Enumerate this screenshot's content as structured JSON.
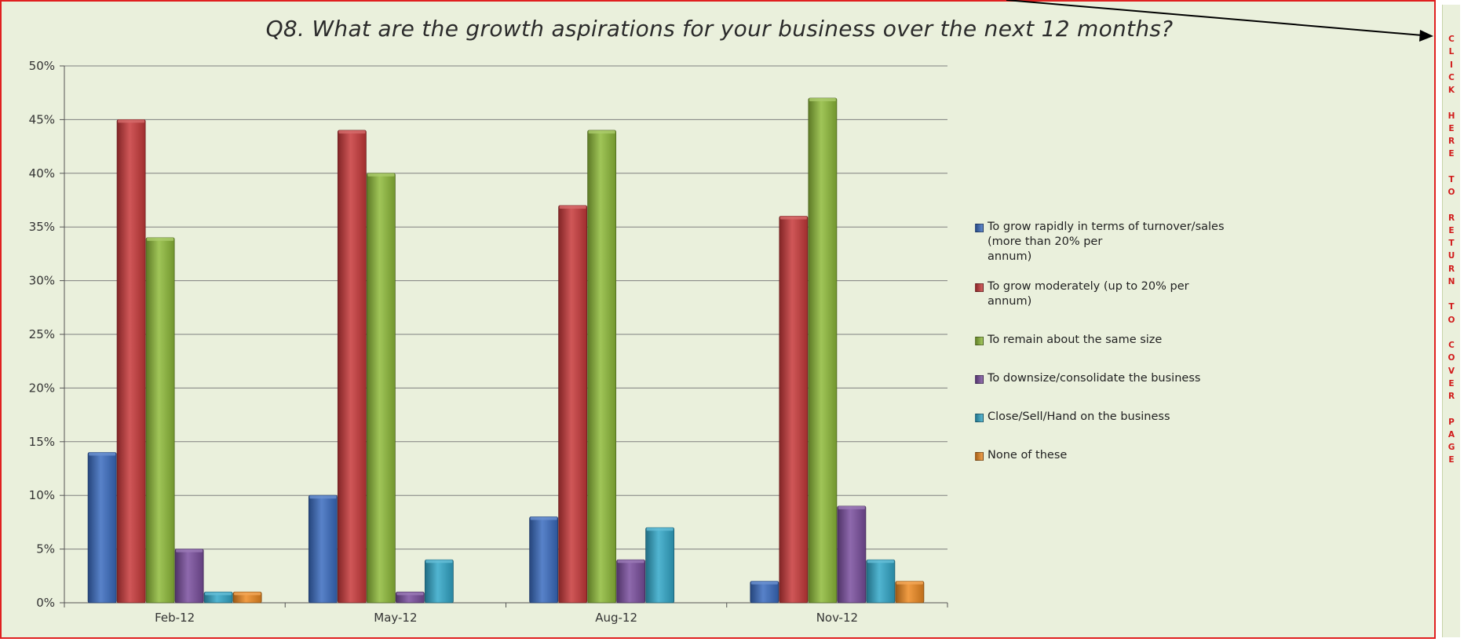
{
  "title": "Q8. What are the growth aspirations for your business over the next 12 months?",
  "cover_link": {
    "text": "CLICK HERE TO RETURN TO COVER PAGE",
    "vertical_text": "C\nL\nI\nC\nK\n \nH\nE\nR\nE\n \nT\nO\n \nR\nE\nT\nU\nR\nN\n \nT\nO\n \nC\nO\nV\nE\nR\n \nP\nA\nG\nE",
    "color": "#d11b1b"
  },
  "colors": {
    "frame_border": "#e02020",
    "background": "#eaf0dc",
    "gridline": "#7f7f7f"
  },
  "chart_data": {
    "type": "bar",
    "title": "Q8. What are the growth aspirations for your business over the next 12 months?",
    "categories": [
      "Feb-12",
      "May-12",
      "Aug-12",
      "Nov-12"
    ],
    "yticks": [
      "0%",
      "5%",
      "10%",
      "15%",
      "20%",
      "25%",
      "30%",
      "35%",
      "40%",
      "45%",
      "50%"
    ],
    "ylim": [
      0,
      50
    ],
    "y_unit": "%",
    "grid": true,
    "legend_position": "right",
    "series": [
      {
        "name": "To grow rapidly in terms of turnover/sales (more than 20% per annum)",
        "legend_lines": [
          "To grow rapidly in terms of turnover/sales (more than 20% per",
          "annum)"
        ],
        "color": "#3a6cc0",
        "values": [
          14,
          10,
          8,
          2
        ]
      },
      {
        "name": "To grow moderately (up to 20% per annum)",
        "legend_lines": [
          "To grow moderately (up to 20% per annum)"
        ],
        "color": "#c8393a",
        "values": [
          45,
          44,
          37,
          36
        ]
      },
      {
        "name": "To remain about the same size",
        "legend_lines": [
          "To remain about the same size"
        ],
        "color": "#8fbb3a",
        "values": [
          34,
          40,
          44,
          47
        ]
      },
      {
        "name": "To downsize/consolidate the business",
        "legend_lines": [
          "To downsize/consolidate the business"
        ],
        "color": "#7a4f9e",
        "values": [
          5,
          1,
          4,
          9
        ]
      },
      {
        "name": "Close/Sell/Hand on the business",
        "legend_lines": [
          "Close/Sell/Hand on the business"
        ],
        "color": "#32a8c9",
        "values": [
          1,
          4,
          7,
          4
        ]
      },
      {
        "name": "None of these",
        "legend_lines": [
          "None of these"
        ],
        "color": "#ee8a22",
        "values": [
          1,
          0,
          0,
          2
        ]
      }
    ]
  }
}
